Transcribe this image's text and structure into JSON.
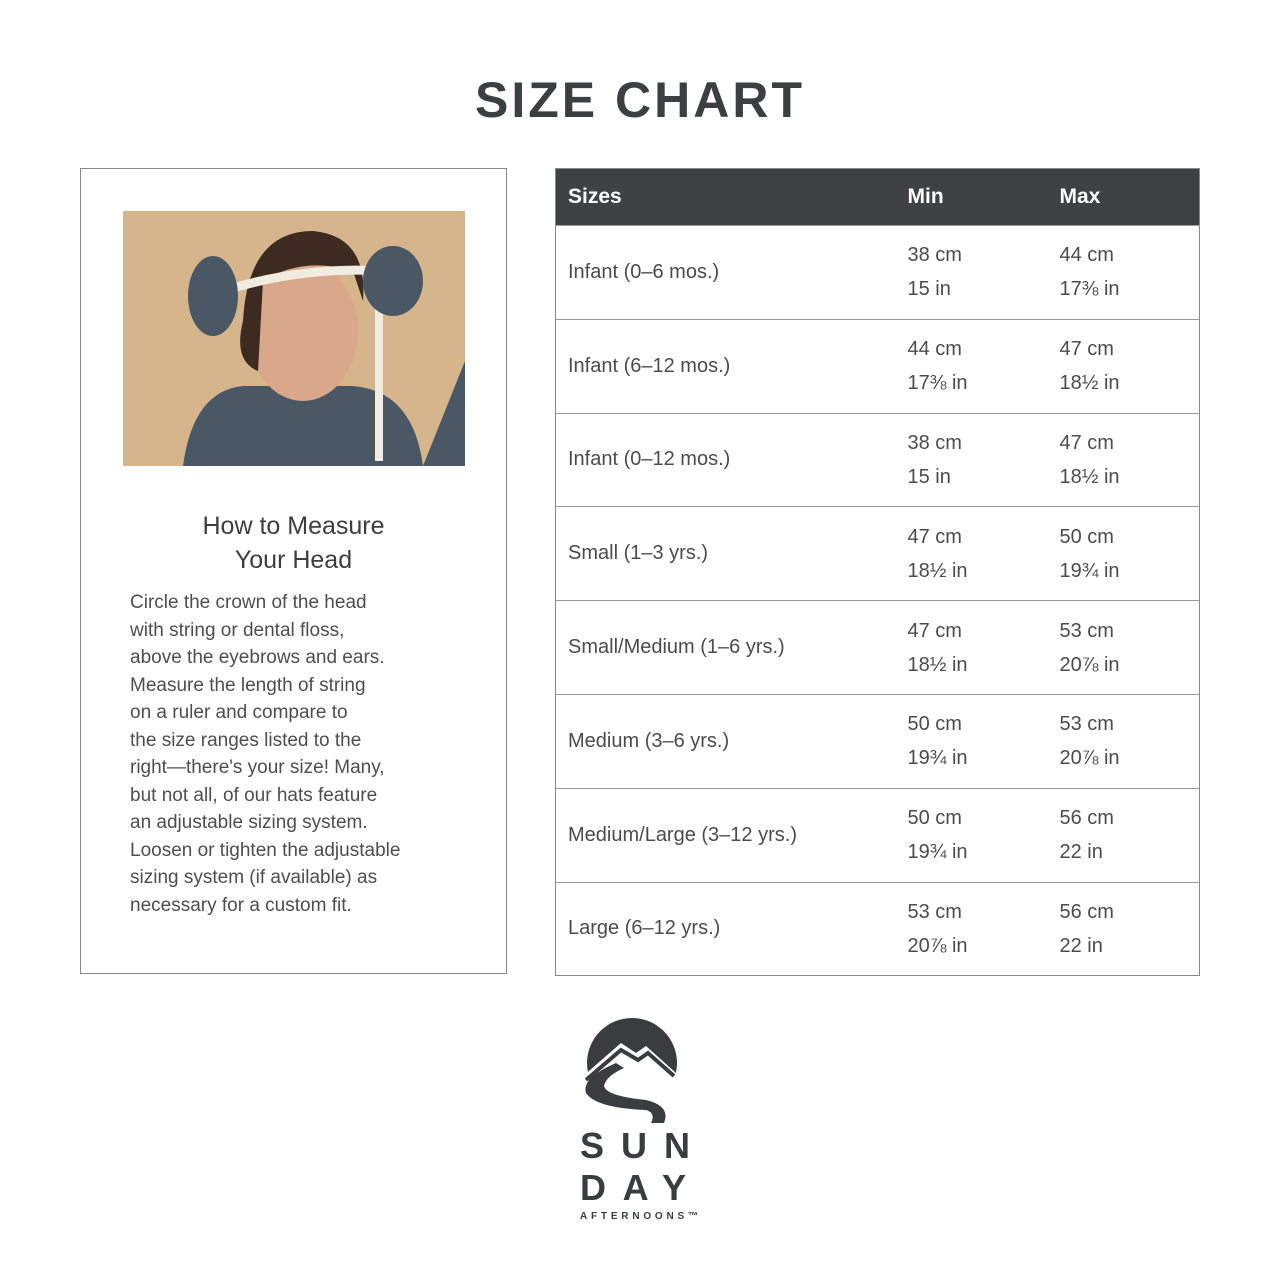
{
  "title": "SIZE CHART",
  "measure": {
    "heading": "How to Measure\nYour Head",
    "body": "Circle the crown of the head\nwith string or dental floss,\nabove the eyebrows and ears.\nMeasure the length of string\non a ruler and compare to\nthe size ranges listed to the\nright—there's your size! Many,\nbut not all, of our hats feature\nan adjustable sizing system.\nLoosen or tighten the adjustable\nsizing system (if available) as\nnecessary for a custom fit."
  },
  "table": {
    "headers": [
      "Sizes",
      "Min",
      "Max"
    ],
    "rows": [
      {
        "size": "Infant (0–6 mos.)",
        "min_cm": "38 cm",
        "min_in": "15 in",
        "max_cm": "44 cm",
        "max_in": "17⅜ in"
      },
      {
        "size": "Infant (6–12 mos.)",
        "min_cm": "44 cm",
        "min_in": "17⅜ in",
        "max_cm": "47 cm",
        "max_in": "18½ in"
      },
      {
        "size": "Infant (0–12 mos.)",
        "min_cm": "38 cm",
        "min_in": "15 in",
        "max_cm": "47 cm",
        "max_in": "18½ in"
      },
      {
        "size": "Small (1–3 yrs.)",
        "min_cm": "47 cm",
        "min_in": "18½ in",
        "max_cm": "50 cm",
        "max_in": "19¾ in"
      },
      {
        "size": "Small/Medium (1–6 yrs.)",
        "min_cm": "47 cm",
        "min_in": "18½ in",
        "max_cm": "53 cm",
        "max_in": "20⅞ in"
      },
      {
        "size": "Medium (3–6 yrs.)",
        "min_cm": "50 cm",
        "min_in": "19¾ in",
        "max_cm": "53 cm",
        "max_in": "20⅞ in"
      },
      {
        "size": "Medium/Large (3–12 yrs.)",
        "min_cm": "50 cm",
        "min_in": "19¾ in",
        "max_cm": "56 cm",
        "max_in": "22 in"
      },
      {
        "size": "Large (6–12 yrs.)",
        "min_cm": "53 cm",
        "min_in": "20⅞ in",
        "max_cm": "56 cm",
        "max_in": "22 in"
      }
    ]
  },
  "logo": {
    "line1": "SUN",
    "line2": "DAY",
    "line3": "AFTERNOONS™"
  }
}
